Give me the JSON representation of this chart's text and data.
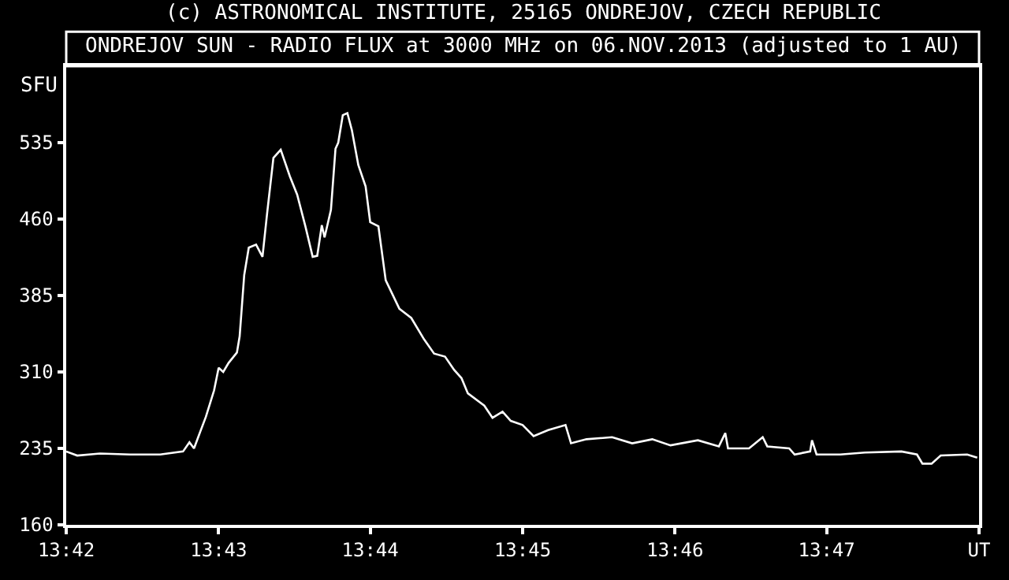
{
  "chart_data": {
    "type": "line",
    "title": "ONDREJOV SUN - RADIO FLUX at 3000 MHz on 06.NOV.2013 (adjusted to 1 AU)",
    "ylabel": "SFU",
    "annotations": [
      "(c) ASTRONOMICAL INSTITUTE, 25165 ONDREJOV, CZECH REPUBLIC"
    ],
    "x": [
      13.7,
      13.7012,
      13.7037,
      13.707,
      13.7103,
      13.7128,
      13.7135,
      13.714,
      13.7145,
      13.7153,
      13.7162,
      13.7167,
      13.7172,
      13.7178,
      13.7187,
      13.719,
      13.7195,
      13.72,
      13.7208,
      13.7215,
      13.722,
      13.7227,
      13.7235,
      13.7245,
      13.7253,
      13.7262,
      13.727,
      13.7275,
      13.728,
      13.7283,
      13.729,
      13.7295,
      13.7298,
      13.7303,
      13.7308,
      13.7313,
      13.732,
      13.7328,
      13.7333,
      13.7342,
      13.735,
      13.7365,
      13.7378,
      13.7392,
      13.7403,
      13.7415,
      13.7425,
      13.7433,
      13.744,
      13.7458,
      13.7467,
      13.7478,
      13.7487,
      13.75,
      13.7512,
      13.7528,
      13.7547,
      13.7553,
      13.757,
      13.7598,
      13.762,
      13.7642,
      13.7662,
      13.7692,
      13.7715,
      13.7722,
      13.7725,
      13.7748,
      13.7763,
      13.7768,
      13.7792,
      13.7798,
      13.7815,
      13.7817,
      13.7822,
      13.7848,
      13.7875,
      13.7915,
      13.7932,
      13.7938,
      13.7948,
      13.7958,
      13.7987,
      13.7998
    ],
    "series": [
      {
        "color": "#ffffff",
        "values": [
          232,
          228,
          230,
          229,
          229,
          232,
          241,
          235,
          247,
          266,
          292,
          314,
          310,
          319,
          329,
          345,
          405,
          432,
          435,
          423,
          465,
          520,
          528,
          502,
          484,
          453,
          423,
          424,
          454,
          442,
          469,
          529,
          535,
          562,
          564,
          547,
          513,
          492,
          457,
          453,
          400,
          372,
          363,
          342,
          328,
          325,
          312,
          304,
          289,
          277,
          265,
          271,
          262,
          258,
          247,
          253,
          258,
          240,
          244,
          246,
          240,
          244,
          238,
          243,
          237,
          250,
          235,
          235,
          246,
          237,
          235,
          229,
          232,
          243,
          229,
          229,
          231,
          232,
          229,
          220,
          220,
          228,
          229,
          226
        ]
      }
    ],
    "xlim": [
      13.7,
      13.8
    ],
    "xticks": [
      {
        "value": 13.7,
        "label": "13:42"
      },
      {
        "value": 13.7167,
        "label": "13:43"
      },
      {
        "value": 13.7333,
        "label": "13:44"
      },
      {
        "value": 13.75,
        "label": "13:45"
      },
      {
        "value": 13.7667,
        "label": "13:46"
      },
      {
        "value": 13.7833,
        "label": "13:47"
      },
      {
        "value": 13.8,
        "label": "UT"
      }
    ],
    "ylim": [
      160,
      610
    ],
    "yticks": [
      160,
      235,
      310,
      385,
      460,
      535
    ],
    "grid": false,
    "marker": "none",
    "line_style": "solid"
  }
}
